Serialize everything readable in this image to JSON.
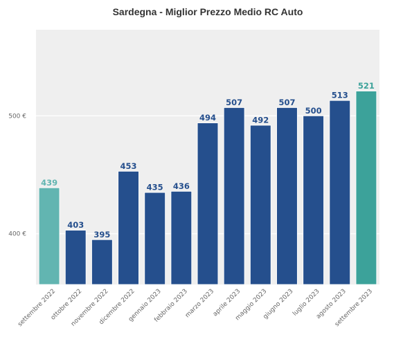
{
  "chart_data": {
    "type": "bar",
    "title": "Sardegna - Miglior Prezzo Medio RC Auto",
    "xlabel": "",
    "ylabel": "",
    "ylim": [
      357,
      573
    ],
    "yticks": [
      {
        "value": 400,
        "label": "400 €"
      },
      {
        "value": 500,
        "label": "500 €"
      }
    ],
    "grid": true,
    "categories": [
      "settembre 2022",
      "ottobre 2022",
      "novembre 2022",
      "dicembre 2022",
      "gennaio 2023",
      "febbraio 2023",
      "marzo 2023",
      "aprile 2023",
      "maggio 2023",
      "giugno 2023",
      "luglio 2023",
      "agosto 2023",
      "settembre 2023"
    ],
    "values": [
      439,
      403,
      395,
      453,
      435,
      436,
      494,
      507,
      492,
      507,
      500,
      513,
      521
    ],
    "bar_colors": [
      "#62b5b1",
      "#254f8d",
      "#254f8d",
      "#254f8d",
      "#254f8d",
      "#254f8d",
      "#254f8d",
      "#254f8d",
      "#254f8d",
      "#254f8d",
      "#254f8d",
      "#254f8d",
      "#3ca29a"
    ],
    "label_colors": [
      "#62b5b1",
      "#254f8d",
      "#254f8d",
      "#254f8d",
      "#254f8d",
      "#254f8d",
      "#254f8d",
      "#254f8d",
      "#254f8d",
      "#254f8d",
      "#254f8d",
      "#254f8d",
      "#3ca29a"
    ],
    "plot_background": "#efefef"
  }
}
